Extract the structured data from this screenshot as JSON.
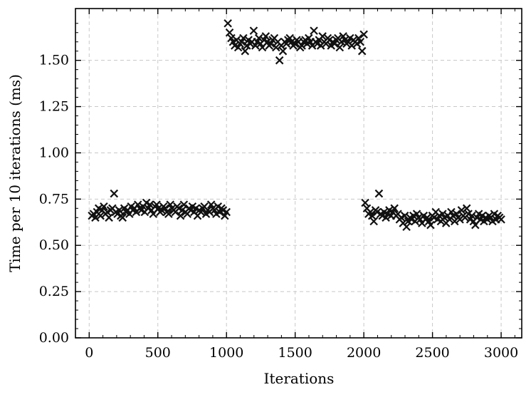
{
  "chart_data": {
    "type": "scatter",
    "title": "",
    "xlabel": "Iterations",
    "ylabel": "Time per 10 iterations (ms)",
    "xlim": [
      -100,
      3150
    ],
    "ylim": [
      0,
      1.78
    ],
    "xticks": [
      0,
      500,
      1000,
      1500,
      2000,
      2500,
      3000
    ],
    "xtick_labels": [
      "0",
      "500",
      "1000",
      "1500",
      "2000",
      "2500",
      "3000"
    ],
    "yticks": [
      0,
      0.25,
      0.5,
      0.75,
      1.0,
      1.25,
      1.5
    ],
    "ytick_labels": [
      "0.00",
      "0.25",
      "0.50",
      "0.75",
      "1.00",
      "1.25",
      "1.50"
    ],
    "grid": true,
    "marker": "x",
    "marker_color": "#111111",
    "segments": [
      {
        "x_start": 20,
        "x_end": 1000,
        "y": [
          0.66,
          0.67,
          0.65,
          0.68,
          0.7,
          0.66,
          0.69,
          0.71,
          0.67,
          0.68,
          0.65,
          0.69,
          0.7,
          0.78,
          0.68,
          0.67,
          0.69,
          0.66,
          0.65,
          0.7,
          0.68,
          0.69,
          0.67,
          0.71,
          0.69,
          0.7,
          0.68,
          0.72,
          0.7,
          0.69,
          0.71,
          0.68,
          0.73,
          0.7,
          0.72,
          0.69,
          0.67,
          0.71,
          0.72,
          0.7,
          0.68,
          0.69,
          0.71,
          0.7,
          0.68,
          0.67,
          0.72,
          0.7,
          0.69,
          0.68,
          0.71,
          0.7,
          0.66,
          0.69,
          0.72,
          0.68,
          0.67,
          0.7,
          0.69,
          0.71,
          0.68,
          0.7,
          0.66,
          0.69,
          0.68,
          0.7,
          0.71,
          0.67,
          0.69,
          0.68,
          0.72,
          0.7,
          0.69,
          0.67,
          0.71,
          0.68,
          0.7,
          0.69,
          0.66,
          0.68
        ]
      },
      {
        "x_start": 1010,
        "x_end": 2000,
        "y": [
          1.7,
          1.65,
          1.62,
          1.6,
          1.58,
          1.61,
          1.57,
          1.59,
          1.6,
          1.62,
          1.55,
          1.58,
          1.61,
          1.59,
          1.6,
          1.66,
          1.58,
          1.6,
          1.62,
          1.59,
          1.57,
          1.61,
          1.63,
          1.6,
          1.58,
          1.59,
          1.61,
          1.62,
          1.57,
          1.6,
          1.5,
          1.58,
          1.55,
          1.6,
          1.59,
          1.61,
          1.62,
          1.6,
          1.58,
          1.59,
          1.61,
          1.6,
          1.57,
          1.58,
          1.6,
          1.61,
          1.59,
          1.62,
          1.6,
          1.58,
          1.66,
          1.6,
          1.59,
          1.61,
          1.58,
          1.63,
          1.6,
          1.59,
          1.62,
          1.61,
          1.58,
          1.6,
          1.59,
          1.61,
          1.62,
          1.57,
          1.6,
          1.63,
          1.61,
          1.59,
          1.6,
          1.62,
          1.58,
          1.61,
          1.6,
          1.59,
          1.62,
          1.6,
          1.55,
          1.64
        ]
      },
      {
        "x_start": 2010,
        "x_end": 3000,
        "y": [
          0.73,
          0.7,
          0.67,
          0.68,
          0.66,
          0.63,
          0.69,
          0.68,
          0.78,
          0.67,
          0.66,
          0.68,
          0.65,
          0.67,
          0.69,
          0.66,
          0.68,
          0.7,
          0.66,
          0.67,
          0.64,
          0.65,
          0.62,
          0.66,
          0.6,
          0.63,
          0.65,
          0.64,
          0.66,
          0.63,
          0.67,
          0.65,
          0.64,
          0.62,
          0.66,
          0.64,
          0.65,
          0.63,
          0.61,
          0.66,
          0.65,
          0.68,
          0.64,
          0.66,
          0.63,
          0.67,
          0.65,
          0.62,
          0.66,
          0.64,
          0.68,
          0.66,
          0.63,
          0.67,
          0.65,
          0.64,
          0.69,
          0.66,
          0.65,
          0.7,
          0.67,
          0.64,
          0.66,
          0.63,
          0.61,
          0.65,
          0.67,
          0.64,
          0.66,
          0.63,
          0.65,
          0.64,
          0.66,
          0.65,
          0.63,
          0.67,
          0.64,
          0.66,
          0.65,
          0.64
        ]
      }
    ]
  }
}
